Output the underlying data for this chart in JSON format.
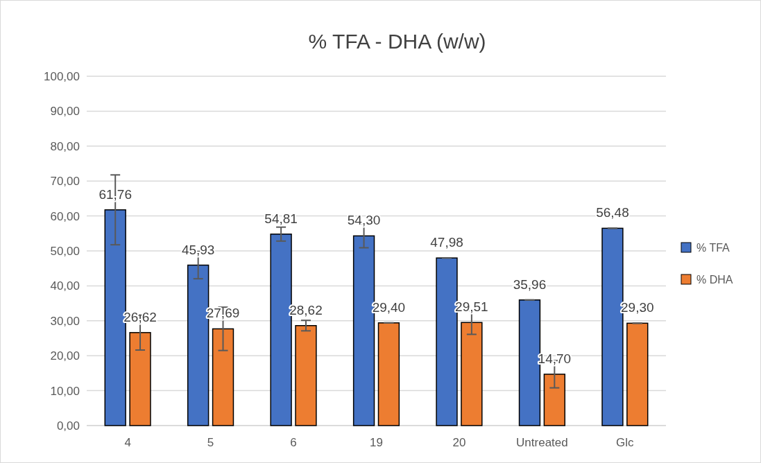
{
  "chart_data": {
    "type": "bar",
    "title": "% TFA - DHA (w/w)",
    "categories": [
      "4",
      "5",
      "6",
      "19",
      "20",
      "Untreated",
      "Glc"
    ],
    "series": [
      {
        "name": "% TFA",
        "color": "#4472c4",
        "values": [
          61.76,
          45.93,
          54.81,
          54.3,
          47.98,
          35.96,
          56.48
        ],
        "errors": [
          10,
          3.9,
          2,
          3.4,
          0,
          0,
          0
        ],
        "value_labels": [
          "61,76",
          "45,93",
          "54,81",
          "54,30",
          "47,98",
          "35,96",
          "56,48"
        ]
      },
      {
        "name": "% DHA",
        "color": "#ed7d31",
        "values": [
          26.62,
          27.69,
          28.62,
          29.4,
          29.51,
          14.7,
          29.3
        ],
        "errors": [
          5,
          6.2,
          1.5,
          0,
          3.4,
          3.9,
          0
        ],
        "value_labels": [
          "26,62",
          "27,69",
          "28,62",
          "29,40",
          "29,51",
          "14,70",
          "29,30"
        ]
      }
    ],
    "ylim": [
      0,
      100
    ],
    "yticks": [
      {
        "value": 0,
        "label": "0,00"
      },
      {
        "value": 10,
        "label": "10,00"
      },
      {
        "value": 20,
        "label": "20,00"
      },
      {
        "value": 30,
        "label": "30,00"
      },
      {
        "value": 40,
        "label": "40,00"
      },
      {
        "value": 50,
        "label": "50,00"
      },
      {
        "value": 60,
        "label": "60,00"
      },
      {
        "value": 70,
        "label": "70,00"
      },
      {
        "value": 80,
        "label": "80,00"
      },
      {
        "value": 90,
        "label": "90,00"
      },
      {
        "value": 100,
        "label": "100,00"
      }
    ],
    "grid": "y",
    "legend": "right"
  }
}
